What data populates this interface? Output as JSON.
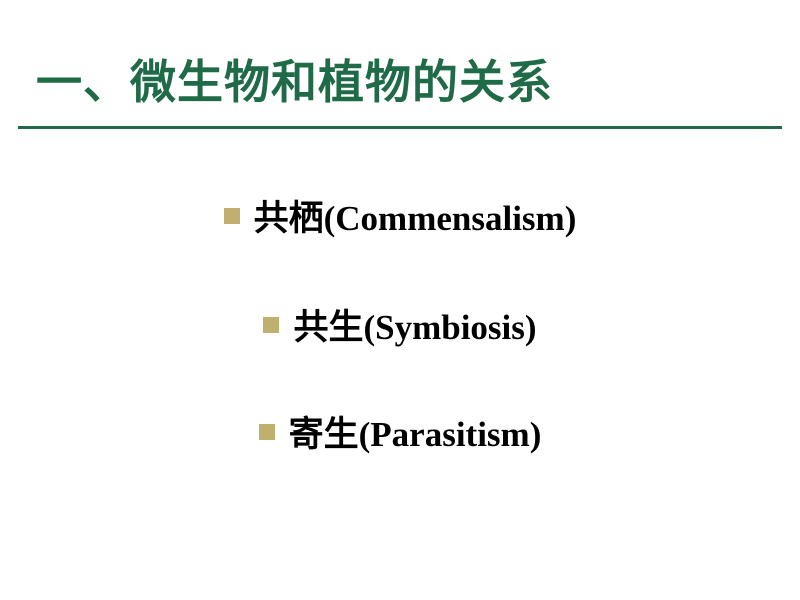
{
  "slide": {
    "title": "一、微生物和植物的关系",
    "title_color": "#1f6b47",
    "title_fontsize": 46,
    "rule_color": "#1f6b47",
    "bullet_color": "#c0b070",
    "bullet_fontsize": 35,
    "background_color": "#ffffff",
    "items": [
      {
        "label": "共栖(Commensalism)"
      },
      {
        "label": "共生(Symbiosis)"
      },
      {
        "label": "寄生(Parasitism)"
      }
    ]
  }
}
